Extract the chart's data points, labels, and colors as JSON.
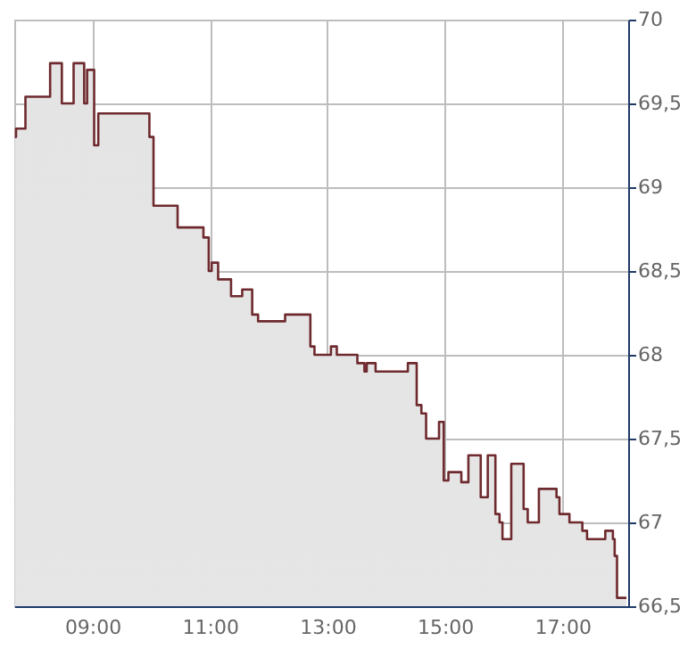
{
  "chart_data": {
    "type": "step",
    "x": [
      7.68,
      7.7,
      7.86,
      8.28,
      8.48,
      8.68,
      8.86,
      8.91,
      9.03,
      9.1,
      9.97,
      10.04,
      10.45,
      10.89,
      10.98,
      11.03,
      11.14,
      11.36,
      11.55,
      11.72,
      11.82,
      12.28,
      12.71,
      12.78,
      13.06,
      13.16,
      13.51,
      13.63,
      13.67,
      13.82,
      14.37,
      14.52,
      14.6,
      14.68,
      14.9,
      14.98,
      15.06,
      15.28,
      15.4,
      15.61,
      15.73,
      15.86,
      15.93,
      15.98,
      16.13,
      16.34,
      16.41,
      16.6,
      16.9,
      16.95,
      17.12,
      17.34,
      17.42,
      17.73,
      17.86,
      17.89,
      17.93,
      18.09
    ],
    "series": [
      {
        "color": "#6e2a2e",
        "values": [
          69.3,
          69.35,
          69.54,
          69.74,
          69.5,
          69.74,
          69.5,
          69.7,
          69.25,
          69.44,
          69.3,
          68.89,
          68.76,
          68.7,
          68.5,
          68.55,
          68.45,
          68.35,
          68.39,
          68.24,
          68.2,
          68.24,
          68.05,
          68.0,
          68.05,
          68.0,
          67.95,
          67.9,
          67.95,
          67.9,
          67.95,
          67.7,
          67.65,
          67.5,
          67.6,
          67.25,
          67.3,
          67.24,
          67.4,
          67.15,
          67.4,
          67.05,
          67.0,
          66.9,
          67.35,
          67.08,
          67.0,
          67.2,
          67.15,
          67.05,
          67.0,
          66.95,
          66.9,
          66.95,
          66.9,
          66.8,
          66.55,
          66.55
        ]
      }
    ],
    "xlim": [
      7.67,
      18.12
    ],
    "xticks": [
      {
        "value": 9,
        "label": "09:00"
      },
      {
        "value": 11,
        "label": "11:00"
      },
      {
        "value": 13,
        "label": "13:00"
      },
      {
        "value": 15,
        "label": "15:00"
      },
      {
        "value": 17,
        "label": "17:00"
      }
    ],
    "ylim": [
      66.5,
      70
    ],
    "yticks": [
      {
        "value": 66.5,
        "label": "66,5"
      },
      67,
      {
        "value": 67.5,
        "label": "67,5"
      },
      68,
      {
        "value": 68.5,
        "label": "68,5"
      },
      69,
      {
        "value": 69.5,
        "label": "69,5"
      },
      70
    ],
    "grid": true
  }
}
